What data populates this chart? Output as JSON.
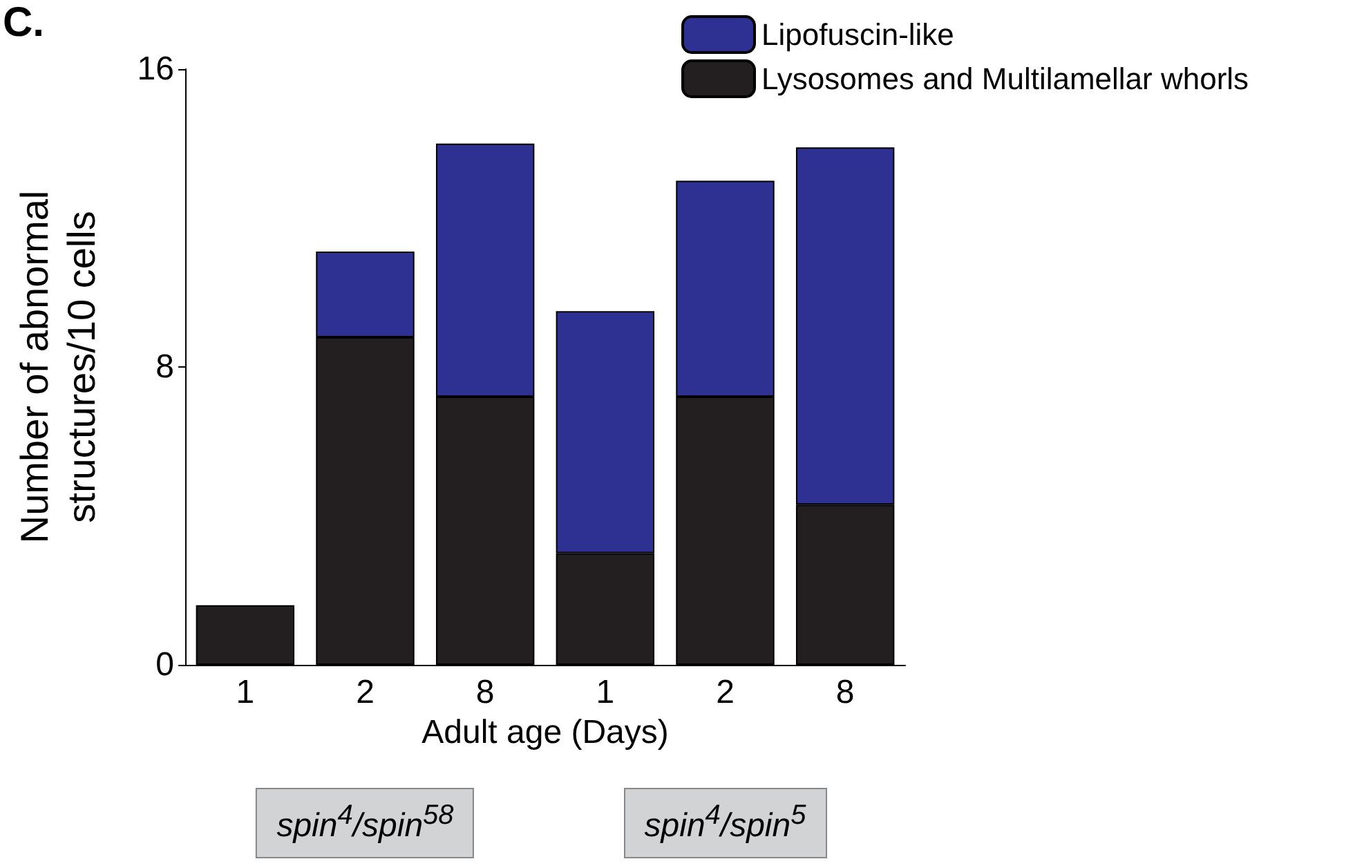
{
  "chart_data": {
    "type": "bar",
    "stacked": true,
    "categories": [
      "1",
      "2",
      "8",
      "1",
      "2",
      "8"
    ],
    "xlabel": "Adult age (Days)",
    "ylabel": "Number of abnormal structures/10 cells",
    "series": [
      {
        "name": "Lysosomes and Multilamellar whorls",
        "color": "#231f20",
        "values": [
          1.6,
          8.8,
          7.2,
          3.0,
          7.2,
          4.3
        ]
      },
      {
        "name": "Lipofuscin-like",
        "color": "#2e3192",
        "values": [
          null,
          2.3,
          6.8,
          6.5,
          5.8,
          9.6
        ]
      }
    ],
    "ylim": [
      0,
      16
    ],
    "yticks": [
      0,
      8,
      16
    ],
    "grid": false,
    "legend": "top right",
    "annotations": [
      "C.",
      "spin$^{4}$/spin$^{58}$",
      "spin$^{4}$/spin$^{5}$"
    ]
  }
}
